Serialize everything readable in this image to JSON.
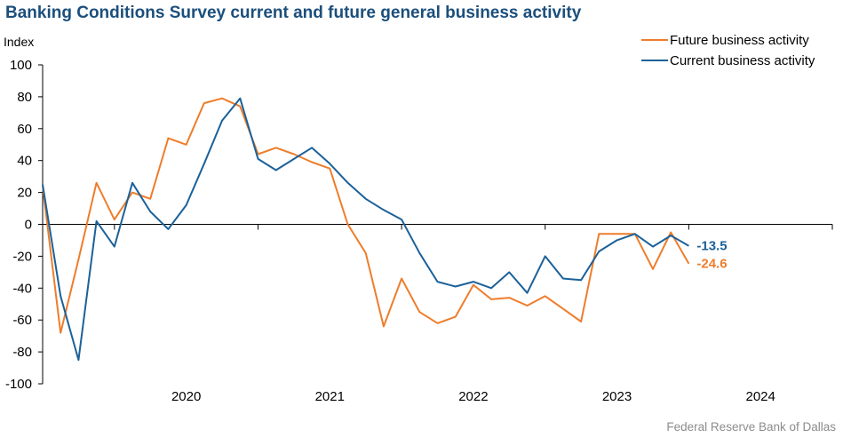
{
  "title": "Banking Conditions Survey current and future general business activity",
  "source": "Federal Reserve Bank of Dallas",
  "colors": {
    "future": "#ee7d2b",
    "current": "#1b6199",
    "title": "#1b4f7c",
    "axis": "#000000"
  },
  "chart_data": {
    "type": "line",
    "ylabel": "Index",
    "ylim": [
      -100,
      100
    ],
    "yticks": [
      100,
      80,
      60,
      40,
      20,
      0,
      -20,
      -40,
      -60,
      -80,
      -100
    ],
    "x_start": 2019.5,
    "x_end": 2025.0,
    "x_step": 0.125,
    "year_labels": [
      "2020",
      "2021",
      "2022",
      "2023",
      "2024"
    ],
    "grid": false,
    "legend_position": "top-right",
    "series": [
      {
        "name": "Future business activity",
        "key": "future",
        "values": [
          24,
          -68,
          -22,
          26,
          3,
          20,
          16,
          54,
          50,
          76,
          79,
          74,
          44,
          48,
          44,
          39,
          35,
          0,
          -18,
          -64,
          -34,
          -55,
          -62,
          -58,
          -38,
          -47,
          -46,
          -51,
          -45,
          -53,
          -61,
          -6,
          -6,
          -6,
          -28,
          -5,
          -24.6
        ],
        "end_label": "-24.6"
      },
      {
        "name": "Current business activity",
        "key": "current",
        "values": [
          25,
          -45,
          -85,
          2,
          -14,
          26,
          8,
          -3,
          12,
          38,
          65,
          79,
          41,
          34,
          41,
          48,
          38,
          26,
          16,
          9,
          3,
          -18,
          -36,
          -39,
          -36,
          -40,
          -30,
          -43,
          -20,
          -34,
          -35,
          -17,
          -10,
          -6,
          -14,
          -7,
          -13.5
        ],
        "end_label": "-13.5"
      }
    ]
  }
}
